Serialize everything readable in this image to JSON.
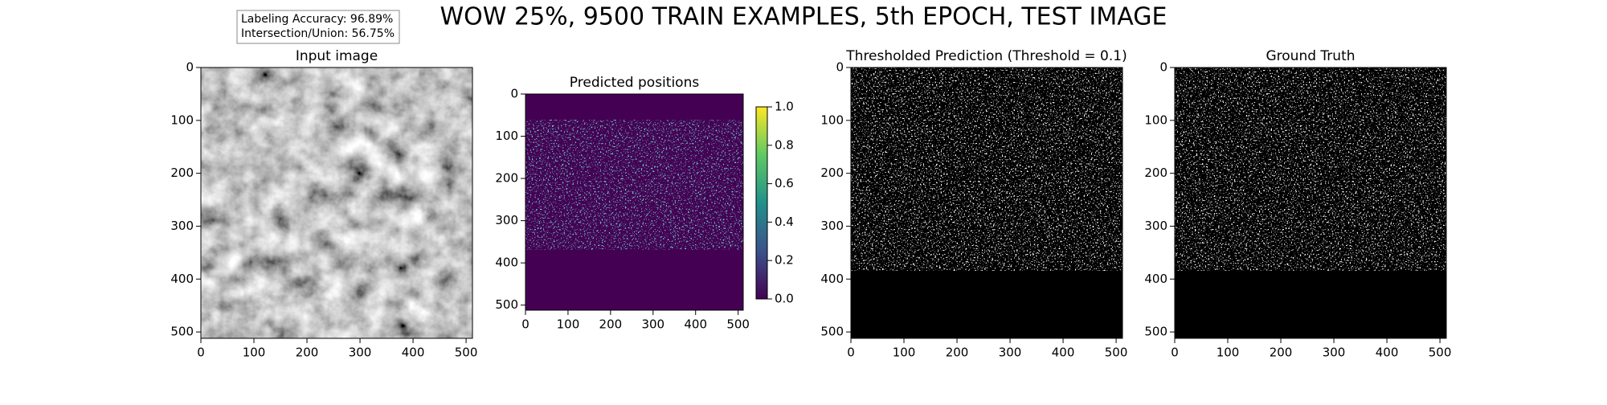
{
  "title": "WOW 25%, 9500 TRAIN EXAMPLES, 5th EPOCH, TEST IMAGE",
  "annotation": [
    "Labeling Accuracy:  96.89%",
    "Intersection/Union:  56.75%"
  ],
  "chart_data": [
    {
      "type": "image",
      "title": "Input image",
      "xlim": [
        0,
        512
      ],
      "ylim": [
        512,
        0
      ],
      "xticks": [
        0,
        100,
        200,
        300,
        400,
        500
      ],
      "yticks": [
        0,
        100,
        200,
        300,
        400,
        500
      ],
      "colormap": "gray"
    },
    {
      "type": "image",
      "title": "Predicted positions",
      "xlim": [
        0,
        512
      ],
      "ylim": [
        512,
        0
      ],
      "xticks": [
        0,
        100,
        200,
        300,
        400,
        500
      ],
      "yticks": [
        0,
        100,
        200,
        300,
        400,
        500
      ],
      "colormap": "viridis",
      "colorbar": {
        "lim": [
          0,
          1
        ],
        "ticks": [
          {
            "value": 0,
            "label": "0.0"
          },
          {
            "value": 0.2,
            "label": "0.2"
          },
          {
            "value": 0.4,
            "label": "0.4"
          },
          {
            "value": 0.6,
            "label": "0.6"
          },
          {
            "value": 0.8,
            "label": "0.8"
          },
          {
            "value": 1,
            "label": "1.0"
          }
        ]
      }
    },
    {
      "type": "image",
      "title": "Thresholded Prediction (Threshold = 0.1)",
      "xlim": [
        0,
        512
      ],
      "ylim": [
        512,
        0
      ],
      "xticks": [
        0,
        100,
        200,
        300,
        400,
        500
      ],
      "yticks": [
        0,
        100,
        200,
        300,
        400,
        500
      ],
      "colormap": "binary"
    },
    {
      "type": "image",
      "title": "Ground Truth",
      "xlim": [
        0,
        512
      ],
      "ylim": [
        512,
        0
      ],
      "xticks": [
        0,
        100,
        200,
        300,
        400,
        500
      ],
      "yticks": [
        0,
        100,
        200,
        300,
        400,
        500
      ],
      "colormap": "binary"
    }
  ]
}
